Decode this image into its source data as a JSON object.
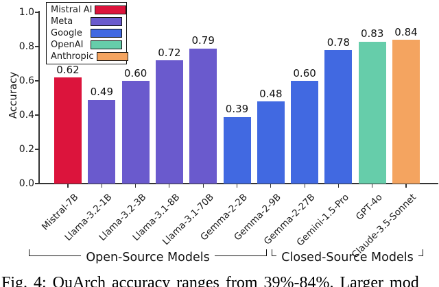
{
  "figure": {
    "caption": "Fig. 4: QuArch accuracy ranges from 39%-84%. Larger mod"
  },
  "chart_data": {
    "type": "bar",
    "title": "",
    "xlabel": "",
    "ylabel": "Accuracy",
    "ylim": [
      0.0,
      1.0
    ],
    "yticks": [
      "0.0",
      "0.2",
      "0.4",
      "0.6",
      "0.8",
      "1.0"
    ],
    "grid": false,
    "legend_position": "upper-left",
    "legend": [
      {
        "label": "Mistral AI",
        "color": "#DC143C"
      },
      {
        "label": "Meta",
        "color": "#6A5ACD"
      },
      {
        "label": "Google",
        "color": "#4169E1"
      },
      {
        "label": "OpenAI",
        "color": "#66CDAA"
      },
      {
        "label": "Anthropic",
        "color": "#F4A460"
      }
    ],
    "categories": [
      "Mistral-7B",
      "Llama-3.2-1B",
      "Llama-3.2-3B",
      "Llama-3.1-8B",
      "Llama-3.1-70B",
      "Gemma-2-2B",
      "Gemma-2-9B",
      "Gemma-2-27B",
      "Gemini-1.5-Pro",
      "GPT-4o",
      "Claude-3.5-Sonnet"
    ],
    "values": [
      0.62,
      0.49,
      0.6,
      0.72,
      0.79,
      0.39,
      0.48,
      0.6,
      0.78,
      0.83,
      0.84
    ],
    "value_labels": [
      "0.62",
      "0.49",
      "0.60",
      "0.72",
      "0.79",
      "0.39",
      "0.48",
      "0.60",
      "0.78",
      "0.83",
      "0.84"
    ],
    "bar_companies": [
      "Mistral AI",
      "Meta",
      "Meta",
      "Meta",
      "Meta",
      "Google",
      "Google",
      "Google",
      "Google",
      "OpenAI",
      "Anthropic"
    ],
    "model_groups": [
      {
        "label": "Open-Source Models",
        "models": [
          "Mistral-7B",
          "Llama-3.2-1B",
          "Llama-3.2-3B",
          "Llama-3.1-8B",
          "Llama-3.1-70B",
          "Gemma-2-2B",
          "Gemma-2-9B",
          "Gemma-2-27B"
        ]
      },
      {
        "label": "Closed-Source Models",
        "models": [
          "Gemini-1.5-Pro",
          "GPT-4o",
          "Claude-3.5-Sonnet"
        ]
      }
    ]
  }
}
